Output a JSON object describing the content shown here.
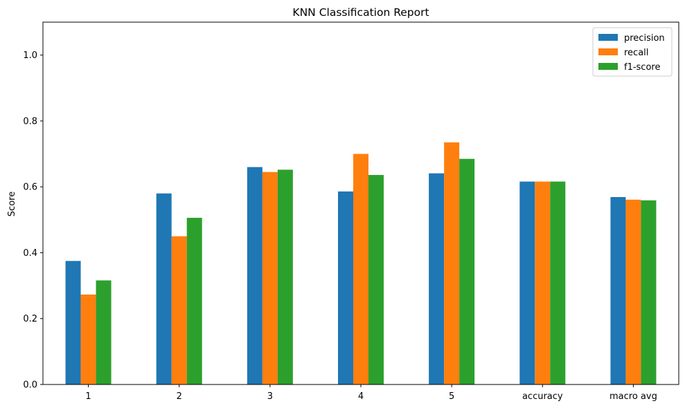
{
  "chart_data": {
    "type": "bar",
    "title": "KNN Classification Report",
    "xlabel": "",
    "ylabel": "Score",
    "categories": [
      "1",
      "2",
      "3",
      "4",
      "5",
      "accuracy",
      "macro avg"
    ],
    "series": [
      {
        "name": "precision",
        "color": "#1f77b4",
        "values": [
          0.375,
          0.58,
          0.66,
          0.586,
          0.641,
          0.616,
          0.569
        ]
      },
      {
        "name": "recall",
        "color": "#ff7f0e",
        "values": [
          0.273,
          0.45,
          0.645,
          0.7,
          0.735,
          0.616,
          0.561
        ]
      },
      {
        "name": "f1-score",
        "color": "#2ca02c",
        "values": [
          0.316,
          0.506,
          0.652,
          0.636,
          0.685,
          0.616,
          0.559
        ]
      }
    ],
    "ylim": [
      0,
      1.1
    ],
    "yticks": [
      0.0,
      0.2,
      0.4,
      0.6,
      0.8,
      1.0
    ],
    "ytick_labels": [
      "0.0",
      "0.2",
      "0.4",
      "0.6",
      "0.8",
      "1.0"
    ],
    "grid": false,
    "legend_position": "top-right"
  }
}
